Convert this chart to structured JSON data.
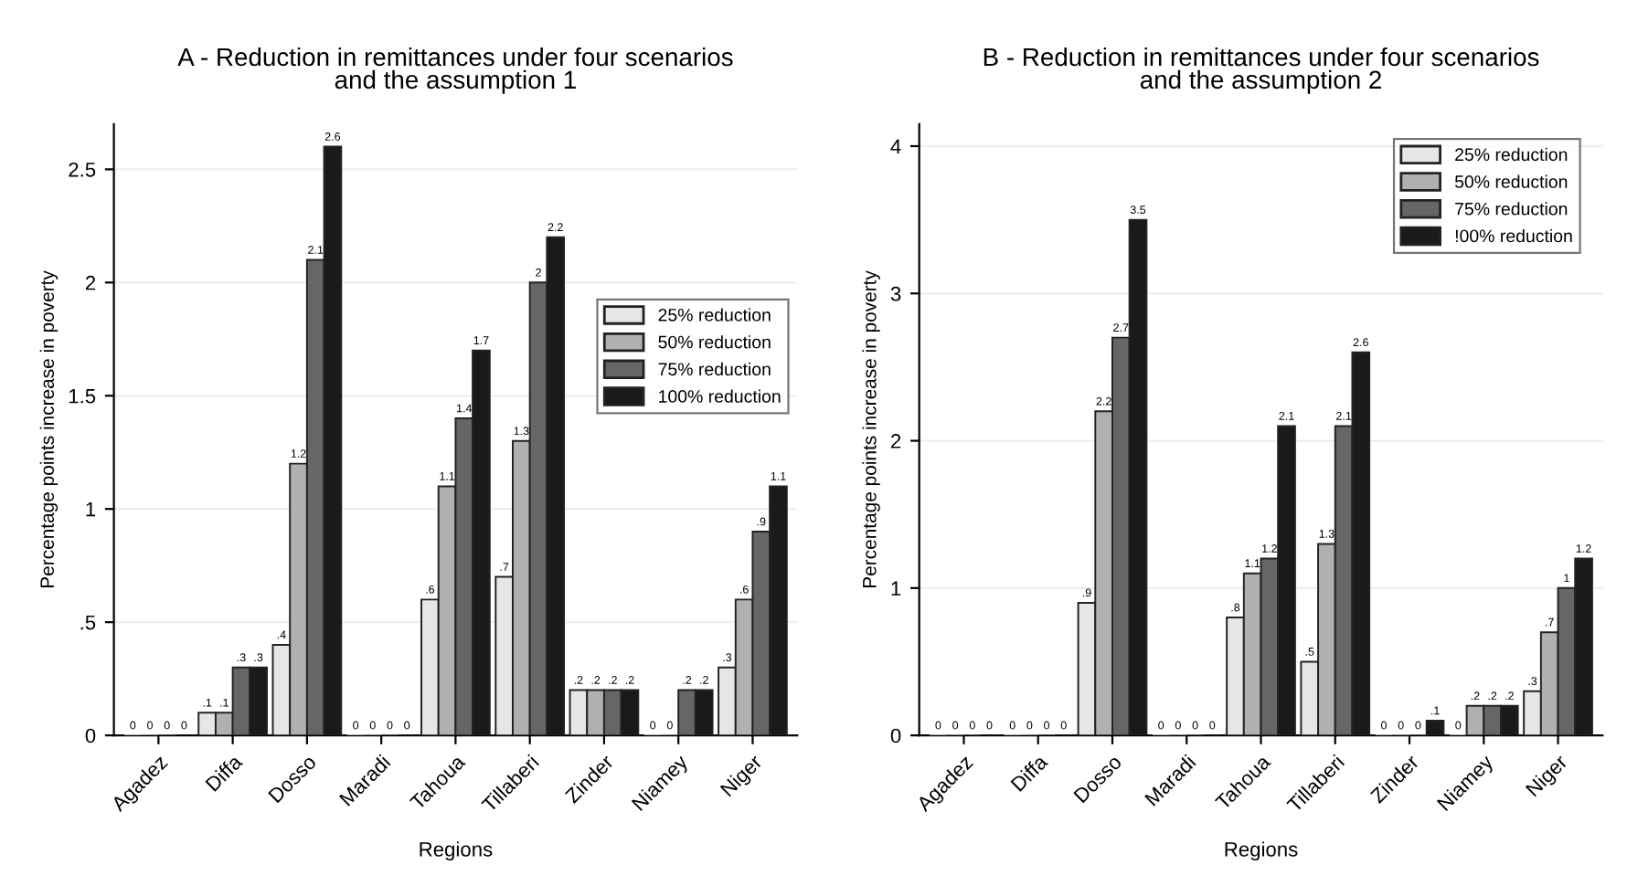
{
  "chart_data": [
    {
      "type": "bar",
      "title": "A - Reduction in remittances under four scenarios\nand the assumption 1",
      "xlabel": "Regions",
      "ylabel": "Percentage points increase in poverty",
      "categories": [
        "Agadez",
        "Diffa",
        "Dosso",
        "Maradi",
        "Tahoua",
        "Tillaberi",
        "Zinder",
        "Niamey",
        "Niger"
      ],
      "series": [
        {
          "name": "25% reduction",
          "color": "#e6e6e6",
          "values": [
            0,
            0.1,
            0.4,
            0,
            0.6,
            0.7,
            0.2,
            0,
            0.3
          ],
          "value_labels": [
            "0",
            ".1",
            ".4",
            "0",
            ".6",
            ".7",
            ".2",
            "0",
            ".3"
          ]
        },
        {
          "name": "50% reduction",
          "color": "#b0b0b0",
          "values": [
            0,
            0.1,
            1.2,
            0,
            1.1,
            1.3,
            0.2,
            0,
            0.6
          ],
          "value_labels": [
            "0",
            ".1",
            "1.2",
            "0",
            "1.1",
            "1.3",
            ".2",
            "0",
            ".6"
          ]
        },
        {
          "name": "75% reduction",
          "color": "#666666",
          "values": [
            0,
            0.3,
            2.1,
            0,
            1.4,
            2,
            0.2,
            0.2,
            0.9
          ],
          "value_labels": [
            "0",
            ".3",
            "2.1",
            "0",
            "1.4",
            "2",
            ".2",
            ".2",
            ".9"
          ]
        },
        {
          "name": "100% reduction",
          "color": "#1a1a1a",
          "values": [
            0,
            0.3,
            2.6,
            0,
            1.7,
            2.2,
            0.2,
            0.2,
            1.1
          ],
          "value_labels": [
            "0",
            ".3",
            "2.6",
            "0",
            "1.7",
            "2.2",
            ".2",
            ".2",
            "1.1"
          ]
        }
      ],
      "ylim": [
        0,
        2.7
      ],
      "yticks": [
        0,
        {
          "value": 0.5,
          "label": ".5"
        },
        1,
        1.5,
        2,
        2.5
      ],
      "grid": "y",
      "legend": "right"
    },
    {
      "type": "bar",
      "title": "B - Reduction in remittances under four scenarios\nand the assumption 2",
      "xlabel": "Regions",
      "ylabel": "Percentage points increase in poverty",
      "categories": [
        "Agadez",
        "Diffa",
        "Dosso",
        "Maradi",
        "Tahoua",
        "Tillaberi",
        "Zinder",
        "Niamey",
        "Niger"
      ],
      "series": [
        {
          "name": "25% reduction",
          "color": "#e6e6e6",
          "values": [
            0,
            0,
            0.9,
            0,
            0.8,
            0.5,
            0,
            0,
            0.3
          ],
          "value_labels": [
            "0",
            "0",
            ".9",
            "0",
            ".8",
            ".5",
            "0",
            "0",
            ".3"
          ]
        },
        {
          "name": "50% reduction",
          "color": "#b0b0b0",
          "values": [
            0,
            0,
            2.2,
            0,
            1.1,
            1.3,
            0,
            0.2,
            0.7
          ],
          "value_labels": [
            "0",
            "0",
            "2.2",
            "0",
            "1.1",
            "1.3",
            "0",
            ".2",
            ".7"
          ]
        },
        {
          "name": "75% reduction",
          "color": "#666666",
          "values": [
            0,
            0,
            2.7,
            0,
            1.2,
            2.1,
            0,
            0.2,
            1
          ],
          "value_labels": [
            "0",
            "0",
            "2.7",
            "0",
            "1.2",
            "2.1",
            "0",
            ".2",
            "1"
          ]
        },
        {
          "name": "!00% reduction",
          "color": "#1a1a1a",
          "values": [
            0,
            0,
            3.5,
            0,
            2.1,
            2.6,
            0.1,
            0.2,
            1.2
          ],
          "value_labels": [
            "0",
            "0",
            "3.5",
            "0",
            "2.1",
            "2.6",
            ".1",
            ".2",
            "1.2"
          ]
        }
      ],
      "ylim": [
        0,
        4.15
      ],
      "yticks": [
        0,
        1,
        2,
        3,
        4
      ],
      "grid": "y",
      "legend": "top right"
    }
  ]
}
